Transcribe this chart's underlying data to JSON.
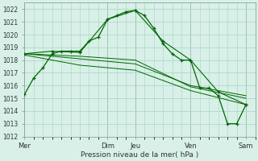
{
  "background_color": "#d8f0e8",
  "grid_color": "#b0d8c8",
  "line_color": "#006600",
  "ylabel_text": "Pression niveau de la mer( hPa )",
  "ylim": [
    1012,
    1022.5
  ],
  "yticks": [
    1012,
    1013,
    1014,
    1015,
    1016,
    1017,
    1018,
    1019,
    1020,
    1021,
    1022
  ],
  "x_day_labels": [
    "Mer",
    "Dim",
    "Jeu",
    "Ven",
    "Sam"
  ],
  "x_day_positions": [
    0,
    9,
    12,
    18,
    24
  ],
  "xlim": [
    0,
    25
  ],
  "series1": {
    "x": [
      0,
      1,
      2,
      3,
      4,
      5,
      6,
      7,
      8,
      9,
      10,
      11,
      12,
      13,
      14,
      15,
      16,
      17,
      18,
      19,
      20,
      21,
      22,
      23,
      24
    ],
    "y": [
      1015.3,
      1016.6,
      1017.4,
      1018.5,
      1018.7,
      1018.7,
      1018.7,
      1019.5,
      1019.8,
      1021.2,
      1021.5,
      1021.8,
      1021.9,
      1021.5,
      1020.5,
      1019.3,
      1018.5,
      1018.0,
      1018.0,
      1015.8,
      1015.8,
      1015.2,
      1013.0,
      1013.0,
      1014.5
    ]
  },
  "series2": {
    "x": [
      0,
      3,
      6,
      9,
      12,
      15,
      18,
      21,
      24
    ],
    "y": [
      1018.5,
      1018.7,
      1018.6,
      1021.2,
      1021.9,
      1019.5,
      1018.0,
      1015.5,
      1014.5
    ]
  },
  "series3": {
    "x": [
      0,
      6,
      12,
      18,
      24
    ],
    "y": [
      1018.5,
      1018.3,
      1018.0,
      1015.9,
      1015.0
    ]
  },
  "series4": {
    "x": [
      0,
      6,
      12,
      18,
      24
    ],
    "y": [
      1018.5,
      1018.1,
      1017.7,
      1016.0,
      1015.2
    ]
  },
  "series5": {
    "x": [
      0,
      6,
      12,
      18,
      24
    ],
    "y": [
      1018.4,
      1017.6,
      1017.2,
      1015.6,
      1014.5
    ]
  },
  "vlines_x": [
    9,
    12,
    18,
    24
  ]
}
